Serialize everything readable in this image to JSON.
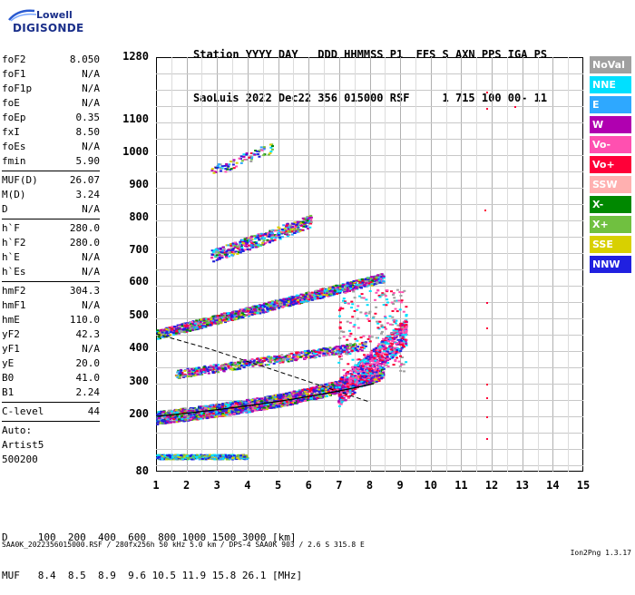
{
  "logo": {
    "top": "Lowell",
    "bottom": "DIGISONDE"
  },
  "header": {
    "line1": "Station YYYY DAY   DDD HHMMSS P1  FFS S AXN PPS IGA PS",
    "line2": "SaoLuis 2022 Dec22 356 015000 RSF     1 715 100 00- 11"
  },
  "params": {
    "group1": [
      {
        "name": "foF2",
        "value": "8.050"
      },
      {
        "name": "foF1",
        "value": "N/A"
      },
      {
        "name": "foF1p",
        "value": "N/A"
      },
      {
        "name": "foE",
        "value": "N/A"
      },
      {
        "name": "foEp",
        "value": "0.35"
      },
      {
        "name": "fxI",
        "value": "8.50"
      },
      {
        "name": "foEs",
        "value": "N/A"
      },
      {
        "name": "fmin",
        "value": "5.90"
      }
    ],
    "group2": [
      {
        "name": "MUF(D)",
        "value": "26.07"
      },
      {
        "name": "M(D)",
        "value": "3.24"
      },
      {
        "name": "D",
        "value": "N/A"
      }
    ],
    "group3": [
      {
        "name": "h`F",
        "value": "280.0"
      },
      {
        "name": "h`F2",
        "value": "280.0"
      },
      {
        "name": "h`E",
        "value": "N/A"
      },
      {
        "name": "h`Es",
        "value": "N/A"
      }
    ],
    "group4": [
      {
        "name": "hmF2",
        "value": "304.3"
      },
      {
        "name": "hmF1",
        "value": "N/A"
      },
      {
        "name": "hmE",
        "value": "110.0"
      },
      {
        "name": "yF2",
        "value": "42.3"
      },
      {
        "name": "yF1",
        "value": "N/A"
      },
      {
        "name": "yE",
        "value": "20.0"
      },
      {
        "name": "B0",
        "value": "41.0"
      },
      {
        "name": "B1",
        "value": "2.24"
      }
    ],
    "group5": [
      {
        "name": "C-level",
        "value": "44"
      }
    ],
    "group6": [
      "Auto:",
      "Artist5",
      "500200"
    ]
  },
  "axes": {
    "y_ticks": [
      "1280",
      "1100",
      "1000",
      "900",
      "800",
      "700",
      "600",
      "500",
      "400",
      "300",
      "200",
      "80"
    ],
    "x_ticks": [
      "1",
      "2",
      "3",
      "4",
      "5",
      "6",
      "7",
      "8",
      "9",
      "10",
      "11",
      "12",
      "13",
      "14",
      "15"
    ]
  },
  "legend": [
    {
      "label": "NoVal",
      "color": "#a0a0a0"
    },
    {
      "label": "NNE",
      "color": "#00e0ff"
    },
    {
      "label": "E",
      "color": "#2ea8ff"
    },
    {
      "label": "W",
      "color": "#b000b0"
    },
    {
      "label": "Vo-",
      "color": "#ff50b0"
    },
    {
      "label": "Vo+",
      "color": "#ff0038"
    },
    {
      "label": "SSW",
      "color": "#ffb0b0"
    },
    {
      "label": "X-",
      "color": "#008800"
    },
    {
      "label": "X+",
      "color": "#70c040"
    },
    {
      "label": "SSE",
      "color": "#d8d000"
    },
    {
      "label": "NNW",
      "color": "#2020e0"
    }
  ],
  "footer": {
    "d_line": "D     100  200  400  600  800 1000 1500 3000 [km]",
    "muf_line": "MUF   8.4  8.5  8.9  9.6 10.5 11.9 15.8 26.1 [MHz]"
  },
  "bottom": {
    "left": "SAA0K_2022356015000.RSF / 280fx256h 50 kHz 5.0 km / DPS-4 SAA0K 903 / 2.6 S 315.8 E",
    "right": "Ion2Png 1.3.17"
  }
}
